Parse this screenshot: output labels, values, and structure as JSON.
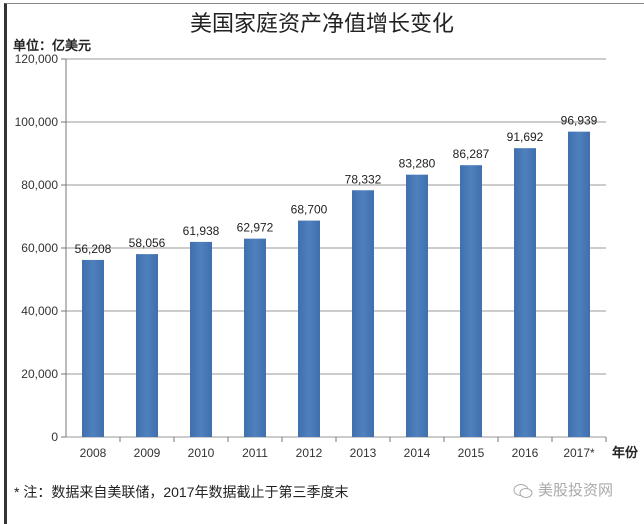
{
  "chart_data": {
    "type": "bar",
    "title": "美国家庭资产净值增长变化",
    "ylabel": "单位：亿美元",
    "xlabel": "年份",
    "categories": [
      "2008",
      "2009",
      "2010",
      "2011",
      "2012",
      "2013",
      "2014",
      "2015",
      "2016",
      "2017*"
    ],
    "values": [
      56208,
      58056,
      61938,
      62972,
      68700,
      78332,
      83280,
      86287,
      91692,
      96939
    ],
    "data_labels": [
      "56,208",
      "58,056",
      "61,938",
      "62,972",
      "68,700",
      "78,332",
      "83,280",
      "86,287",
      "91,692",
      "96,939"
    ],
    "ylim": [
      0,
      120000
    ],
    "yticks": [
      "0",
      "20,000",
      "40,000",
      "60,000",
      "80,000",
      "100,000",
      "120,000"
    ],
    "grid": true,
    "bar_color": "#4f81bd"
  },
  "footnote": "* 注：数据来自美联储，2017年数据截止于第三季度末",
  "watermark": "美股投资网"
}
